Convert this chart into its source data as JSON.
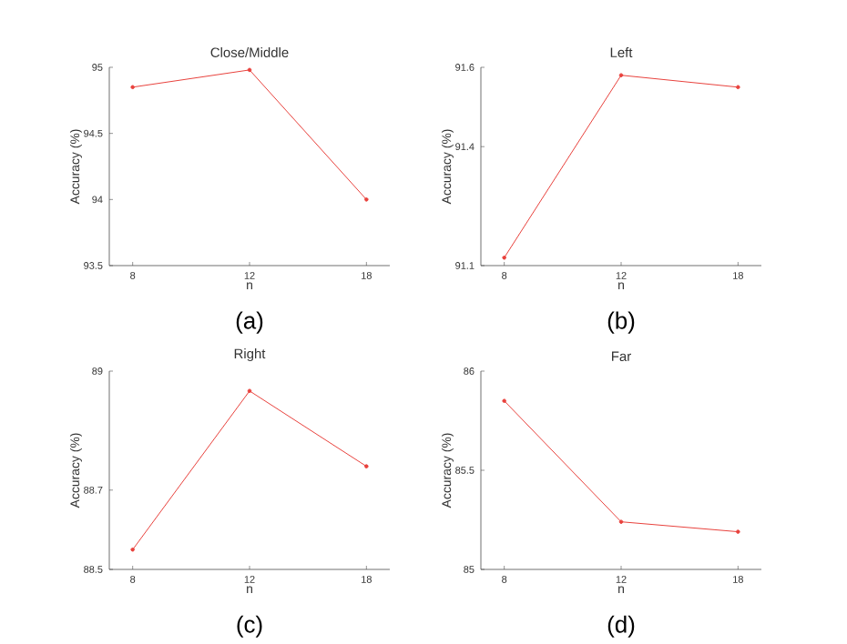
{
  "chart_data": [
    {
      "type": "line",
      "title": "Close/Middle",
      "xlabel": "n",
      "ylabel": "Accuracy (%)",
      "categories": [
        "8",
        "12",
        "18"
      ],
      "series": [
        {
          "color": "#e8413c",
          "values": [
            94.85,
            94.98,
            94.0
          ]
        }
      ],
      "ylim": [
        93.5,
        95
      ],
      "yticks": [
        93.5,
        94,
        94.5,
        95
      ],
      "marker": "circle",
      "annotations": [
        "(a)"
      ]
    },
    {
      "type": "line",
      "title": "Left",
      "xlabel": "n",
      "ylabel": "Accuracy (%)",
      "categories": [
        "8",
        "12",
        "18"
      ],
      "series": [
        {
          "color": "#e8413c",
          "values": [
            91.12,
            91.58,
            91.55
          ]
        }
      ],
      "ylim": [
        91.1,
        91.6
      ],
      "yticks": [
        91.1,
        91.4,
        91.6
      ],
      "marker": "circle",
      "annotations": [
        "(b)"
      ]
    },
    {
      "type": "line",
      "title": "Right",
      "xlabel": "n",
      "ylabel": "Accuracy (%)",
      "categories": [
        "8",
        "12",
        "18"
      ],
      "series": [
        {
          "color": "#e8413c",
          "values": [
            88.55,
            88.95,
            88.76
          ]
        }
      ],
      "ylim": [
        88.5,
        89
      ],
      "yticks": [
        88.5,
        88.7,
        89
      ],
      "marker": "circle",
      "annotations": [
        "(c)"
      ]
    },
    {
      "type": "line",
      "title": "Far",
      "xlabel": "n",
      "ylabel": "Accuracy (%)",
      "categories": [
        "8",
        "12",
        "18"
      ],
      "series": [
        {
          "color": "#e8413c",
          "values": [
            85.85,
            85.24,
            85.19
          ]
        }
      ],
      "ylim": [
        85,
        86
      ],
      "yticks": [
        85,
        85.5,
        86
      ],
      "marker": "circle",
      "annotations": [
        "(d)"
      ]
    }
  ]
}
